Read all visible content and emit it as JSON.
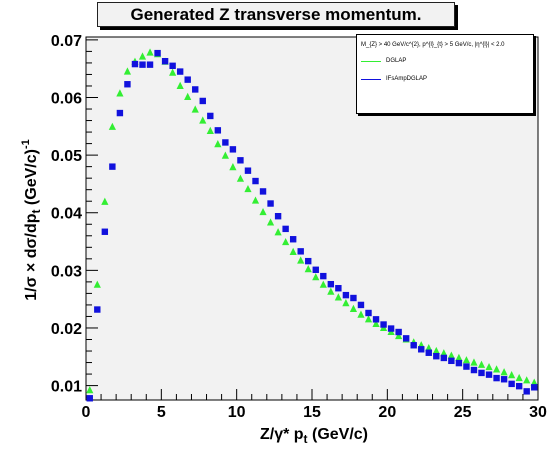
{
  "chart_data": {
    "type": "scatter",
    "title": "Generated Z transverse momentum.",
    "xlabel": "Z/γ* p",
    "xlabel_sub": "t",
    "xlabel_unit": " (GeV/c)",
    "ylabel": "1/σ × dσ/dp",
    "ylabel_sub": "t",
    "ylabel_unit": "  (GeV/c)",
    "ylabel_sup": "-1",
    "xlim": [
      0,
      30
    ],
    "ylim": [
      0.0075,
      0.0705
    ],
    "x_ticks": [
      "0",
      "5",
      "10",
      "15",
      "20",
      "25",
      "30"
    ],
    "y_ticks": [
      "0.01",
      "0.02",
      "0.03",
      "0.04",
      "0.05",
      "0.06",
      "0.07"
    ],
    "grid": false,
    "legend_position": "top-right",
    "legend_header": "M_{Z} > 40 GeV/c^{2}, p^{l}_{t} > 5 GeV/c, |η^{l}| < 2.0",
    "series": [
      {
        "name": "DGLAP",
        "color": "#33ee33",
        "marker": "triangle",
        "x": [
          0.25,
          0.75,
          1.25,
          1.75,
          2.25,
          2.75,
          3.25,
          3.75,
          4.25,
          4.75,
          5.25,
          5.75,
          6.25,
          6.75,
          7.25,
          7.75,
          8.25,
          8.75,
          9.25,
          9.75,
          10.25,
          10.75,
          11.25,
          11.75,
          12.25,
          12.75,
          13.25,
          13.75,
          14.25,
          14.75,
          15.25,
          15.75,
          16.25,
          16.75,
          17.25,
          17.75,
          18.25,
          18.75,
          19.25,
          19.75,
          20.25,
          20.75,
          21.25,
          21.75,
          22.25,
          22.75,
          23.25,
          23.75,
          24.25,
          24.75,
          25.25,
          25.75,
          26.25,
          26.75,
          27.25,
          27.75,
          28.25,
          28.75,
          29.25,
          29.75
        ],
        "y": [
          0.0093,
          0.0276,
          0.042,
          0.055,
          0.0608,
          0.0646,
          0.0663,
          0.0672,
          0.0679,
          0.0676,
          0.0663,
          0.0644,
          0.0621,
          0.0602,
          0.058,
          0.0561,
          0.0543,
          0.052,
          0.05,
          0.048,
          0.046,
          0.0442,
          0.0422,
          0.0402,
          0.0384,
          0.0367,
          0.035,
          0.0333,
          0.0318,
          0.0303,
          0.0289,
          0.0276,
          0.0264,
          0.0254,
          0.0244,
          0.0234,
          0.0224,
          0.0216,
          0.0208,
          0.0201,
          0.0194,
          0.0187,
          0.0181,
          0.0176,
          0.0171,
          0.0166,
          0.0161,
          0.0157,
          0.0153,
          0.0149,
          0.0145,
          0.0141,
          0.0137,
          0.0133,
          0.0129,
          0.0124,
          0.0119,
          0.0114,
          0.011,
          0.0106
        ]
      },
      {
        "name": "IFsAmpDGLAP",
        "color": "#1111dd",
        "marker": "square",
        "x": [
          0.25,
          0.75,
          1.25,
          1.75,
          2.25,
          2.75,
          3.25,
          3.75,
          4.25,
          4.75,
          5.25,
          5.75,
          6.25,
          6.75,
          7.25,
          7.75,
          8.25,
          8.75,
          9.25,
          9.75,
          10.25,
          10.75,
          11.25,
          11.75,
          12.25,
          12.75,
          13.25,
          13.75,
          14.25,
          14.75,
          15.25,
          15.75,
          16.25,
          16.75,
          17.25,
          17.75,
          18.25,
          18.75,
          19.25,
          19.75,
          20.25,
          20.75,
          21.25,
          21.75,
          22.25,
          22.75,
          23.25,
          23.75,
          24.25,
          24.75,
          25.25,
          25.75,
          26.25,
          26.75,
          27.25,
          27.75,
          28.25,
          28.75,
          29.25,
          29.75
        ],
        "y": [
          0.0078,
          0.0232,
          0.0367,
          0.048,
          0.0573,
          0.0623,
          0.0658,
          0.0657,
          0.0657,
          0.0677,
          0.0663,
          0.0655,
          0.0645,
          0.0631,
          0.0614,
          0.0594,
          0.0568,
          0.0543,
          0.0522,
          0.051,
          0.0491,
          0.0473,
          0.0455,
          0.0437,
          0.0416,
          0.0394,
          0.0372,
          0.0354,
          0.0333,
          0.0316,
          0.0301,
          0.029,
          0.0276,
          0.0269,
          0.0257,
          0.0252,
          0.024,
          0.0226,
          0.0215,
          0.0206,
          0.0199,
          0.0193,
          0.0182,
          0.017,
          0.0163,
          0.0157,
          0.0151,
          0.0148,
          0.0143,
          0.0139,
          0.0133,
          0.0127,
          0.0122,
          0.0119,
          0.0113,
          0.0111,
          0.0103,
          0.0099,
          0.009,
          0.0097
        ]
      }
    ]
  }
}
